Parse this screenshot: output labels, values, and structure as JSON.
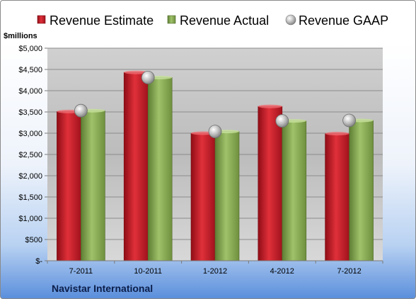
{
  "chart_data": {
    "type": "bar",
    "categories": [
      "7-2011",
      "10-2011",
      "1-2012",
      "4-2012",
      "7-2012"
    ],
    "series": [
      {
        "name": "Revenue Estimate",
        "values": [
          3510,
          4430,
          3000,
          3630,
          2990
        ]
      },
      {
        "name": "Revenue Actual",
        "values": [
          3530,
          4310,
          3040,
          3290,
          3300
        ]
      },
      {
        "name": "Revenue GAAP",
        "values": [
          3530,
          4310,
          3040,
          3290,
          3300
        ]
      }
    ],
    "series_types": [
      "bar",
      "bar",
      "marker"
    ],
    "ylabel": "$millions",
    "ylim": [
      0,
      5000
    ],
    "yticks": [
      "$-",
      "$500",
      "$1,000",
      "$1,500",
      "$2,000",
      "$2,500",
      "$3,000",
      "$3,500",
      "$4,000",
      "$4,500",
      "$5,000"
    ],
    "grid": true,
    "legend": "top",
    "colors": {
      "estimate": "#cc1f2b",
      "actual": "#8cae57",
      "gaap": "#c0c0c0"
    }
  },
  "footer_label": "Navistar International"
}
